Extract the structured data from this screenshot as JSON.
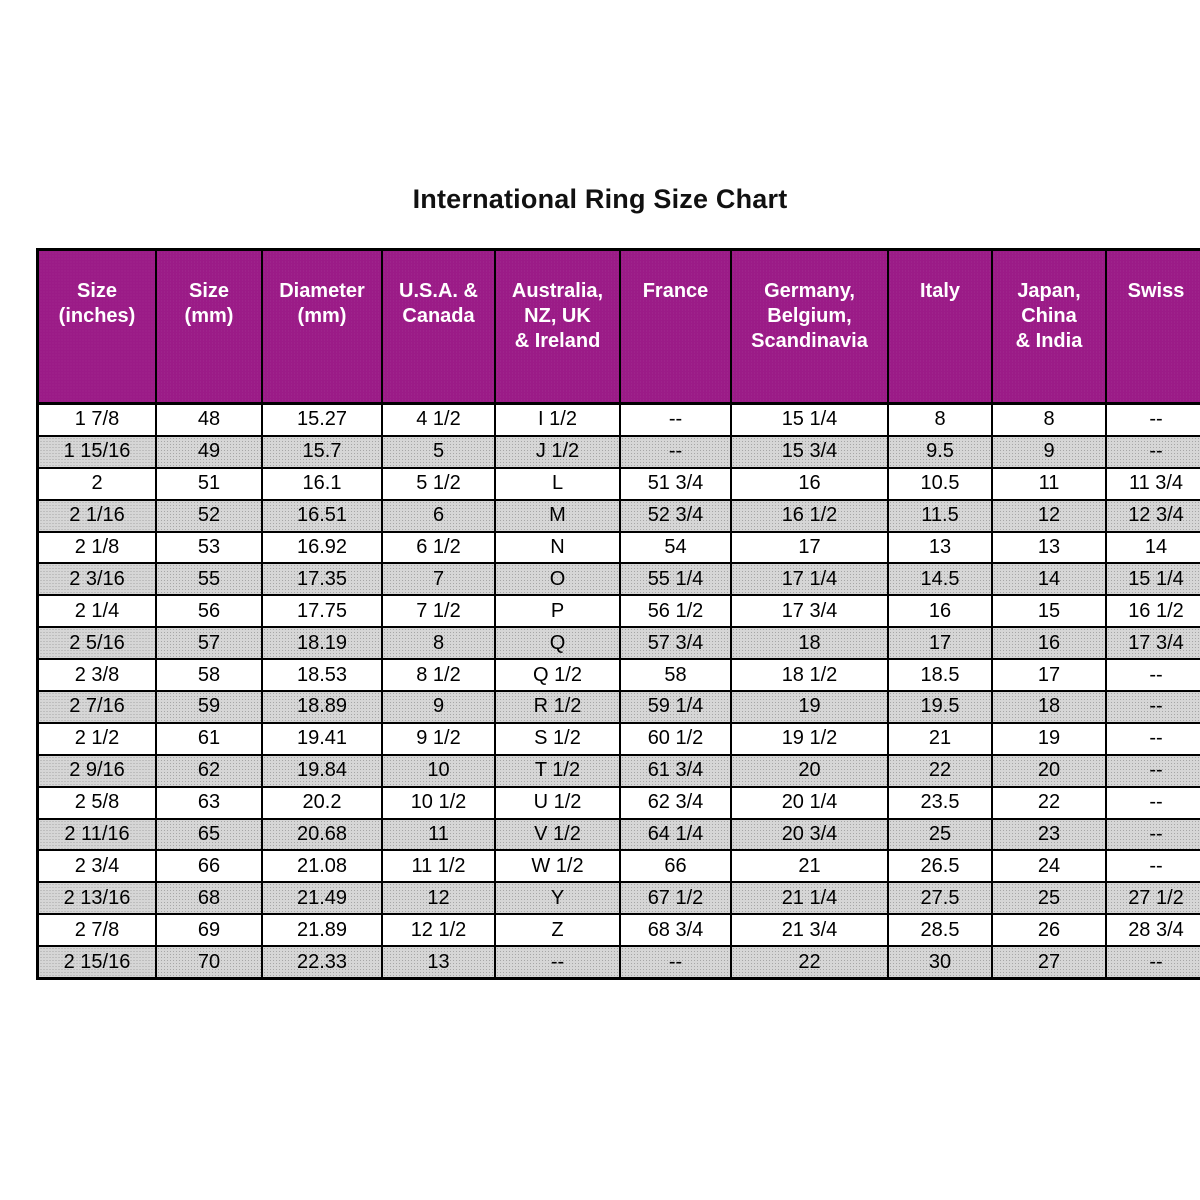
{
  "page_title": "International Ring Size Chart",
  "colors": {
    "header_bg": "#9B1B87",
    "header_text": "#FFFFFF",
    "stripe_bg": "#C9C9C9",
    "border": "#000000",
    "title_text": "#111111"
  },
  "chart_data": {
    "type": "table",
    "title": "International Ring Size Chart",
    "column_keys": [
      "size-inches",
      "size-mm",
      "diameter-mm",
      "usa-canada",
      "australia-nz-uk-ireland",
      "france",
      "germany-belgium-scandinavia",
      "italy",
      "japan-china-india",
      "swiss"
    ],
    "columns": [
      "Size\n(inches)",
      "Size\n(mm)",
      "Diameter\n(mm)",
      "U.S.A. &\nCanada",
      "Australia,\nNZ, UK\n& Ireland",
      "France",
      "Germany,\nBelgium,\nScandinavia",
      "Italy",
      "Japan,\nChina\n& India",
      "Swiss"
    ],
    "rows": [
      [
        "1 7/8",
        "48",
        "15.27",
        "4 1/2",
        "I 1/2",
        "--",
        "15 1/4",
        "8",
        "8",
        "--"
      ],
      [
        "1 15/16",
        "49",
        "15.7",
        "5",
        "J 1/2",
        "--",
        "15 3/4",
        "9.5",
        "9",
        "--"
      ],
      [
        "2",
        "51",
        "16.1",
        "5 1/2",
        "L",
        "51 3/4",
        "16",
        "10.5",
        "11",
        "11 3/4"
      ],
      [
        "2 1/16",
        "52",
        "16.51",
        "6",
        "M",
        "52 3/4",
        "16 1/2",
        "11.5",
        "12",
        "12 3/4"
      ],
      [
        "2 1/8",
        "53",
        "16.92",
        "6 1/2",
        "N",
        "54",
        "17",
        "13",
        "13",
        "14"
      ],
      [
        "2 3/16",
        "55",
        "17.35",
        "7",
        "O",
        "55 1/4",
        "17 1/4",
        "14.5",
        "14",
        "15 1/4"
      ],
      [
        "2 1/4",
        "56",
        "17.75",
        "7 1/2",
        "P",
        "56 1/2",
        "17 3/4",
        "16",
        "15",
        "16 1/2"
      ],
      [
        "2 5/16",
        "57",
        "18.19",
        "8",
        "Q",
        "57 3/4",
        "18",
        "17",
        "16",
        "17 3/4"
      ],
      [
        "2 3/8",
        "58",
        "18.53",
        "8 1/2",
        "Q 1/2",
        "58",
        "18 1/2",
        "18.5",
        "17",
        "--"
      ],
      [
        "2 7/16",
        "59",
        "18.89",
        "9",
        "R 1/2",
        "59 1/4",
        "19",
        "19.5",
        "18",
        "--"
      ],
      [
        "2 1/2",
        "61",
        "19.41",
        "9 1/2",
        "S 1/2",
        "60 1/2",
        "19 1/2",
        "21",
        "19",
        "--"
      ],
      [
        "2 9/16",
        "62",
        "19.84",
        "10",
        "T 1/2",
        "61 3/4",
        "20",
        "22",
        "20",
        "--"
      ],
      [
        "2 5/8",
        "63",
        "20.2",
        "10 1/2",
        "U 1/2",
        "62 3/4",
        "20 1/4",
        "23.5",
        "22",
        "--"
      ],
      [
        "2 11/16",
        "65",
        "20.68",
        "11",
        "V 1/2",
        "64 1/4",
        "20 3/4",
        "25",
        "23",
        "--"
      ],
      [
        "2 3/4",
        "66",
        "21.08",
        "11 1/2",
        "W 1/2",
        "66",
        "21",
        "26.5",
        "24",
        "--"
      ],
      [
        "2 13/16",
        "68",
        "21.49",
        "12",
        "Y",
        "67 1/2",
        "21 1/4",
        "27.5",
        "25",
        "27 1/2"
      ],
      [
        "2 7/8",
        "69",
        "21.89",
        "12 1/2",
        "Z",
        "68 3/4",
        "21 3/4",
        "28.5",
        "26",
        "28 3/4"
      ],
      [
        "2 15/16",
        "70",
        "22.33",
        "13",
        "--",
        "--",
        "22",
        "30",
        "27",
        "--"
      ]
    ]
  }
}
